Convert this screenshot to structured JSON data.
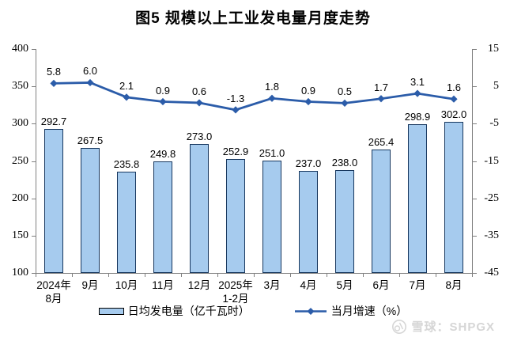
{
  "title": "图5  规模以上工业发电量月度走势",
  "legend": {
    "bar_label": "日均发电量（亿千瓦时）",
    "line_label": "当月增速（%）"
  },
  "watermark": {
    "logo_icon": "xueqiu-logo",
    "text": "雪球：SHPGX"
  },
  "colors": {
    "bar_fill": "#A6CBEE",
    "bar_border": "#17375E",
    "line": "#2B5CA9",
    "axis": "#808080",
    "text": "#000000",
    "watermark_text": "#D6D6D6"
  },
  "chart_data": {
    "type": "bar",
    "subtype": "bar-line-combo",
    "title": "图5  规模以上工业发电量月度走势",
    "categories": [
      "2024年\n8月",
      "9月",
      "10月",
      "11月",
      "12月",
      "2025年\n1-2月",
      "3月",
      "4月",
      "5月",
      "6月",
      "7月",
      "8月"
    ],
    "series": [
      {
        "name": "日均发电量（亿千瓦时）",
        "type": "bar",
        "axis": "left",
        "values": [
          292.7,
          267.5,
          235.8,
          249.8,
          273.0,
          252.9,
          251.0,
          237.0,
          238.0,
          265.4,
          298.9,
          302.0
        ]
      },
      {
        "name": "当月增速（%）",
        "type": "line",
        "axis": "right",
        "marker": "diamond",
        "values": [
          5.8,
          6.0,
          2.1,
          0.9,
          0.6,
          -1.3,
          1.8,
          0.9,
          0.5,
          1.7,
          3.1,
          1.6
        ]
      }
    ],
    "left_axis": {
      "min": 100,
      "max": 400,
      "step": 50,
      "ticks": [
        400,
        350,
        300,
        250,
        200,
        150,
        100
      ]
    },
    "right_axis": {
      "min": -45,
      "max": 15,
      "step": 10,
      "ticks": [
        15,
        5,
        -5,
        -15,
        -25,
        -35,
        -45
      ]
    },
    "grid": false,
    "data_labels": true,
    "legend_position": "bottom"
  }
}
